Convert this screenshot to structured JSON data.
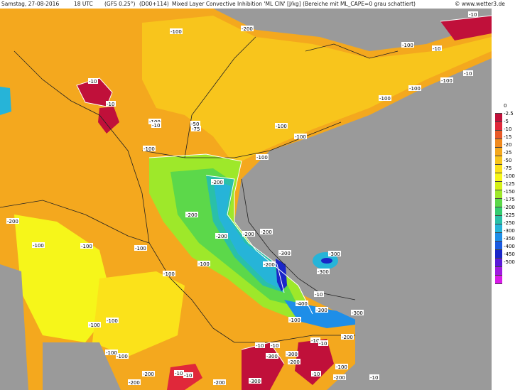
{
  "header": {
    "date": "Samstag, 27-08-2016",
    "time": "18 UTC",
    "model": "(GFS 0.25°)",
    "run": "(D00+114)",
    "product": "Mixed Layer Convective Inhibition 'ML CIN' [J/kg] (Bereiche mit ML_CAPE=0 grau schattiert)",
    "copyright": "© www.wetter3.de"
  },
  "legend": {
    "ticks": [
      "0",
      "-2.5",
      "-5",
      "-10",
      "-15",
      "-20",
      "-25",
      "-50",
      "-75",
      "-100",
      "-125",
      "-150",
      "-175",
      "-200",
      "-225",
      "-250",
      "-300",
      "-350",
      "-400",
      "-450",
      "-500"
    ],
    "colors": [
      "#ffffff",
      "#c0103a",
      "#e0283a",
      "#e85a28",
      "#f08a1e",
      "#f4a81e",
      "#f8c51c",
      "#fbe21a",
      "#f6f61a",
      "#d4f018",
      "#9ee82a",
      "#5cd84a",
      "#34cc70",
      "#2ac0a8",
      "#26b4d8",
      "#1e8ee8",
      "#1a5ae0",
      "#1a26c8",
      "#5a1ad8",
      "#a01ae0",
      "#d81ae8"
    ]
  },
  "contour_labels": [
    "-100",
    "-200",
    "-100",
    "-100",
    "-200",
    "-300",
    "-10",
    "-100",
    "-100",
    "-10",
    "-10",
    "-100",
    "-200",
    "-50",
    "-100",
    "-75",
    "-10",
    "-10",
    "-100",
    "-100",
    "-10",
    "-100",
    "-100",
    "-100",
    "-200",
    "-200",
    "-200",
    "-200",
    "-200",
    "-100",
    "-300",
    "-300",
    "-400",
    "-100",
    "-100",
    "-300",
    "-10",
    "-300",
    "-10",
    "-100",
    "-100",
    "-100",
    "-100",
    "-10",
    "-10",
    "-10",
    "-200",
    "-100",
    "-200",
    "-200",
    "-200",
    "-300",
    "-300",
    "-300",
    "-10",
    "-10",
    "-10",
    "-10",
    "-200",
    "-200",
    "-100"
  ],
  "colors": {
    "no_cape_gray": "#9a9a9a",
    "borders": "#222222"
  }
}
